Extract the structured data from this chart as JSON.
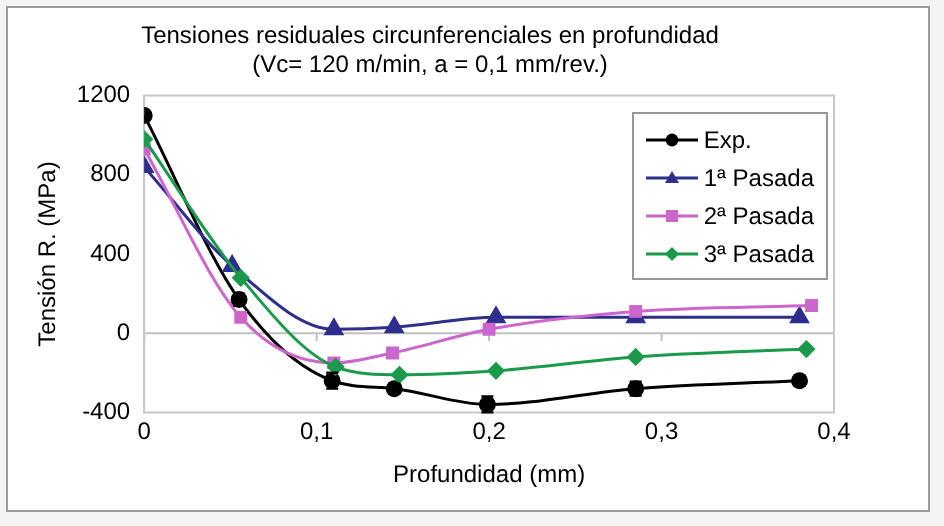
{
  "chart_data": {
    "type": "line",
    "title": "Tensiones residuales circunferenciales en profundidad",
    "subtitle": "(Vc= 120 m/min, a = 0,1 mm/rev.)",
    "xlabel": "Profundidad (mm)",
    "ylabel": "Tensión R. (MPa)",
    "xlim": [
      0,
      0.4
    ],
    "xticks": [
      0,
      {
        "value": 0.1,
        "label": "0,1"
      },
      {
        "value": 0.2,
        "label": "0,2"
      },
      {
        "value": 0.3,
        "label": "0,3"
      },
      {
        "value": 0.4,
        "label": "0,4"
      }
    ],
    "ylim": [
      -400,
      1200
    ],
    "yticks": [
      -400,
      0,
      400,
      800,
      1200
    ],
    "grid": false,
    "legend": "top right",
    "ref_lines": [
      {
        "axis": "y",
        "value": 0,
        "color": "#c0c0c0"
      }
    ],
    "series": [
      {
        "name": "Exp.",
        "color": "#000000",
        "marker": "circle",
        "x": [
          0,
          0.055,
          0.109,
          0.145,
          0.199,
          0.285,
          0.38
        ],
        "values": [
          1100,
          170,
          -240,
          -280,
          -360,
          -280,
          -240
        ],
        "errors": [
          null,
          30,
          40,
          25,
          40,
          35,
          25
        ]
      },
      {
        "name": "1ª Pasada",
        "color": "#2e2e8c",
        "marker": "triangle",
        "x": [
          0,
          0.051,
          0.11,
          0.145,
          0.204,
          0.285,
          0.38
        ],
        "values": [
          840,
          340,
          20,
          30,
          80,
          80,
          80
        ]
      },
      {
        "name": "2ª Pasada",
        "color": "#cc66cc",
        "marker": "square",
        "x": [
          0,
          0.056,
          0.11,
          0.144,
          0.2,
          0.285,
          0.387
        ],
        "values": [
          930,
          80,
          -150,
          -100,
          20,
          110,
          140
        ]
      },
      {
        "name": "3ª Pasada",
        "color": "#1a9a4a",
        "marker": "diamond",
        "x": [
          0,
          0.056,
          0.111,
          0.148,
          0.204,
          0.285,
          0.384
        ],
        "values": [
          980,
          280,
          -170,
          -210,
          -190,
          -120,
          -80
        ]
      }
    ]
  }
}
